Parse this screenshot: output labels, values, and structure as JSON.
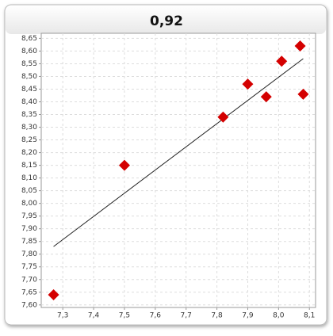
{
  "chart_data": {
    "type": "scatter",
    "title": "0,92",
    "x": [
      7.27,
      7.5,
      7.82,
      7.9,
      7.96,
      8.01,
      8.07,
      8.08
    ],
    "values": [
      7.64,
      8.15,
      8.34,
      8.47,
      8.42,
      8.56,
      8.62,
      8.43
    ],
    "color": "#d40000",
    "trend_line": {
      "x": [
        7.27,
        8.08
      ],
      "y": [
        7.83,
        8.57
      ],
      "color": "#222222"
    },
    "xlim": [
      7.23,
      8.12
    ],
    "ylim": [
      7.59,
      8.67
    ],
    "grid": true,
    "xticks": [
      {
        "value": 7.3,
        "label": "7,3"
      },
      {
        "value": 7.4,
        "label": "7,4"
      },
      {
        "value": 7.5,
        "label": "7,5"
      },
      {
        "value": 7.6,
        "label": "7,6"
      },
      {
        "value": 7.7,
        "label": "7,7"
      },
      {
        "value": 7.8,
        "label": "7,8"
      },
      {
        "value": 7.9,
        "label": "7,9"
      },
      {
        "value": 8.0,
        "label": "8,0"
      },
      {
        "value": 8.1,
        "label": "8,1"
      }
    ],
    "yticks": [
      {
        "value": 7.6,
        "label": "7,60"
      },
      {
        "value": 7.65,
        "label": "7,65"
      },
      {
        "value": 7.7,
        "label": "7,70"
      },
      {
        "value": 7.75,
        "label": "7,75"
      },
      {
        "value": 7.8,
        "label": "7,80"
      },
      {
        "value": 7.85,
        "label": "7,85"
      },
      {
        "value": 7.9,
        "label": "7,90"
      },
      {
        "value": 7.95,
        "label": "7,95"
      },
      {
        "value": 8.0,
        "label": "8,00"
      },
      {
        "value": 8.05,
        "label": "8,05"
      },
      {
        "value": 8.1,
        "label": "8,10"
      },
      {
        "value": 8.15,
        "label": "8,15"
      },
      {
        "value": 8.2,
        "label": "8,20"
      },
      {
        "value": 8.25,
        "label": "8,25"
      },
      {
        "value": 8.3,
        "label": "8,30"
      },
      {
        "value": 8.35,
        "label": "8,35"
      },
      {
        "value": 8.4,
        "label": "8,40"
      },
      {
        "value": 8.45,
        "label": "8,45"
      },
      {
        "value": 8.5,
        "label": "8,50"
      },
      {
        "value": 8.55,
        "label": "8,55"
      },
      {
        "value": 8.6,
        "label": "8,60"
      },
      {
        "value": 8.65,
        "label": "8,65"
      }
    ]
  }
}
